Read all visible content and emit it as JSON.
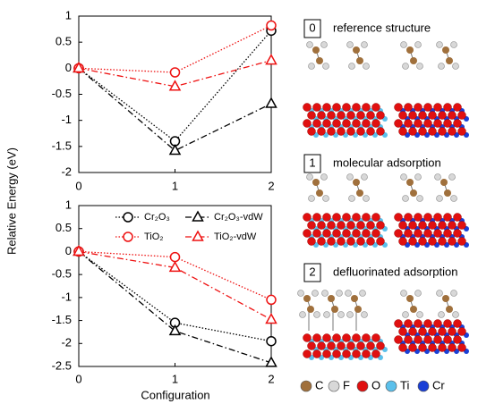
{
  "chart_data": [
    {
      "type": "line",
      "y_label": "Relative Energy (eV)",
      "x": [
        0,
        1,
        2
      ],
      "xlim": [
        0,
        2
      ],
      "xticks": [
        0,
        1,
        2
      ],
      "ylim": [
        -2,
        1
      ],
      "yticks": [
        -2,
        -1.5,
        -1,
        -0.5,
        0,
        0.5,
        1
      ],
      "legend": false,
      "series": [
        {
          "name": "Cr₂O₃",
          "color": "#000000",
          "marker": "circle",
          "linestyle": "dotted",
          "values": [
            0,
            -1.4,
            0.72
          ]
        },
        {
          "name": "Cr₂O₃-vdW",
          "color": "#000000",
          "marker": "triangle",
          "linestyle": "dashdot",
          "values": [
            0,
            -1.58,
            -0.68
          ]
        },
        {
          "name": "TiO₂",
          "color": "#ee1111",
          "marker": "circle",
          "linestyle": "dotted",
          "values": [
            0,
            -0.08,
            0.82
          ]
        },
        {
          "name": "TiO₂-vdW",
          "color": "#ee1111",
          "marker": "triangle",
          "linestyle": "dashdot",
          "values": [
            0,
            -0.35,
            0.15
          ]
        }
      ]
    },
    {
      "type": "line",
      "x_label": "Configuration",
      "x": [
        0,
        1,
        2
      ],
      "xlim": [
        0,
        2
      ],
      "xticks": [
        0,
        1,
        2
      ],
      "ylim": [
        -2.5,
        1
      ],
      "yticks": [
        -2.5,
        -2,
        -1.5,
        -1,
        -0.5,
        0,
        0.5,
        1
      ],
      "legend": "upper center",
      "series": [
        {
          "name": "Cr₂O₃",
          "color": "#000000",
          "marker": "circle",
          "linestyle": "dotted",
          "values": [
            0,
            -1.55,
            -1.95
          ]
        },
        {
          "name": "Cr₂O₃-vdW",
          "color": "#000000",
          "marker": "triangle",
          "linestyle": "dashdot",
          "values": [
            0,
            -1.73,
            -2.42
          ]
        },
        {
          "name": "TiO₂",
          "color": "#ee1111",
          "marker": "circle",
          "linestyle": "dotted",
          "values": [
            0,
            -0.12,
            -1.05
          ]
        },
        {
          "name": "TiO₂-vdW",
          "color": "#ee1111",
          "marker": "triangle",
          "linestyle": "dashdot",
          "values": [
            0,
            -0.35,
            -1.48
          ]
        }
      ]
    }
  ],
  "structure_panel": {
    "sections": [
      {
        "number": "0",
        "label": "reference structure"
      },
      {
        "number": "1",
        "label": "molecular adsorption"
      },
      {
        "number": "2",
        "label": "defluorinated adsorption"
      }
    ],
    "legend": [
      {
        "label": "C",
        "color": "#a0703c"
      },
      {
        "label": "F",
        "color": "#d8d8d8"
      },
      {
        "label": "O",
        "color": "#e01010"
      },
      {
        "label": "Ti",
        "color": "#5bc0eb"
      },
      {
        "label": "Cr",
        "color": "#1a3fd6"
      }
    ]
  }
}
